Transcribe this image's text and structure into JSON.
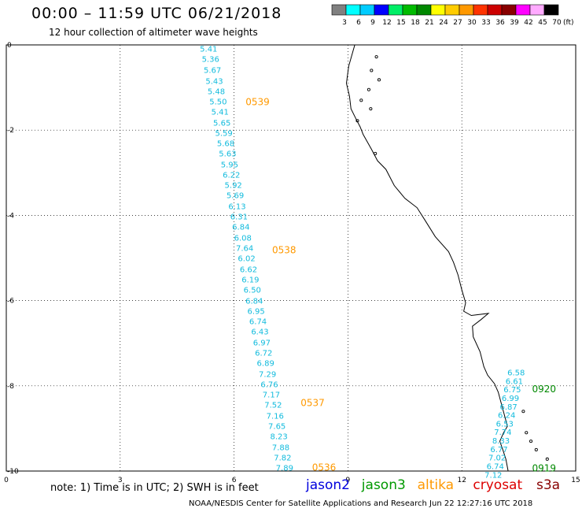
{
  "header": {
    "title": "00:00 – 11:59 UTC 06/21/2018",
    "subtitle": "12 hour collection of altimeter wave heights"
  },
  "color_scale": {
    "labels": [
      "3",
      "6",
      "9",
      "12",
      "15",
      "18",
      "21",
      "24",
      "27",
      "30",
      "33",
      "36",
      "39",
      "42",
      "45",
      "70"
    ],
    "unit": "(ft)",
    "colors": [
      "#808080",
      "#00ffff",
      "#00ccff",
      "#0000ff",
      "#00ee66",
      "#00bb00",
      "#008800",
      "#ffff00",
      "#ffcc00",
      "#ff9900",
      "#ff3300",
      "#cc0000",
      "#880000",
      "#ff00ff",
      "#ffaaff",
      "#000000"
    ]
  },
  "axes": {
    "x_ticks": [
      "0",
      "3",
      "6",
      "9",
      "12",
      "15"
    ],
    "y_ticks": [
      "0",
      "-2",
      "-4",
      "-6",
      "-8",
      "-10"
    ]
  },
  "tracks": [
    {
      "pass_labels": [
        {
          "text": "0539",
          "y": -1.32
        },
        {
          "text": "0538",
          "y": -4.8
        },
        {
          "text": "0537",
          "y": -8.38
        },
        {
          "text": "0536",
          "y": -9.9
        }
      ],
      "label_color": "#ff9900",
      "points": [
        {
          "x": 5.1,
          "y": -0.08,
          "v": "5.41"
        },
        {
          "x": 5.15,
          "y": -0.32,
          "v": "5.36"
        },
        {
          "x": 5.2,
          "y": -0.58,
          "v": "5.67"
        },
        {
          "x": 5.25,
          "y": -0.84,
          "v": "5.43"
        },
        {
          "x": 5.3,
          "y": -1.08,
          "v": "5.48"
        },
        {
          "x": 5.35,
          "y": -1.32,
          "v": "5.50"
        },
        {
          "x": 5.4,
          "y": -1.56,
          "v": "5.41"
        },
        {
          "x": 5.45,
          "y": -1.82,
          "v": "5.65"
        },
        {
          "x": 5.5,
          "y": -2.06,
          "v": "5.59"
        },
        {
          "x": 5.55,
          "y": -2.3,
          "v": "5.68"
        },
        {
          "x": 5.6,
          "y": -2.54,
          "v": "5.63"
        },
        {
          "x": 5.65,
          "y": -2.8,
          "v": "5.95"
        },
        {
          "x": 5.7,
          "y": -3.04,
          "v": "6.22"
        },
        {
          "x": 5.75,
          "y": -3.28,
          "v": "5.92"
        },
        {
          "x": 5.8,
          "y": -3.52,
          "v": "5.69"
        },
        {
          "x": 5.85,
          "y": -3.78,
          "v": "6.13"
        },
        {
          "x": 5.9,
          "y": -4.02,
          "v": "6.31"
        },
        {
          "x": 5.95,
          "y": -4.26,
          "v": "6.84"
        },
        {
          "x": 6.0,
          "y": -4.52,
          "v": "6.08"
        },
        {
          "x": 6.05,
          "y": -4.76,
          "v": "7.64"
        },
        {
          "x": 6.1,
          "y": -5.0,
          "v": "6.02"
        },
        {
          "x": 6.15,
          "y": -5.26,
          "v": "6.62"
        },
        {
          "x": 6.2,
          "y": -5.5,
          "v": "6.19"
        },
        {
          "x": 6.25,
          "y": -5.74,
          "v": "6.50"
        },
        {
          "x": 6.3,
          "y": -6.0,
          "v": "6.84"
        },
        {
          "x": 6.35,
          "y": -6.24,
          "v": "6.95"
        },
        {
          "x": 6.4,
          "y": -6.48,
          "v": "6.74"
        },
        {
          "x": 6.45,
          "y": -6.72,
          "v": "6.43"
        },
        {
          "x": 6.5,
          "y": -6.98,
          "v": "6.97"
        },
        {
          "x": 6.55,
          "y": -7.22,
          "v": "6.72"
        },
        {
          "x": 6.6,
          "y": -7.46,
          "v": "6.89"
        },
        {
          "x": 6.65,
          "y": -7.72,
          "v": "7.29"
        },
        {
          "x": 6.7,
          "y": -7.96,
          "v": "6.76"
        },
        {
          "x": 6.75,
          "y": -8.2,
          "v": "7.17"
        },
        {
          "x": 6.8,
          "y": -8.44,
          "v": "7.52"
        },
        {
          "x": 6.85,
          "y": -8.7,
          "v": "7.16"
        },
        {
          "x": 6.9,
          "y": -8.94,
          "v": "7.65"
        },
        {
          "x": 6.95,
          "y": -9.18,
          "v": "8.23"
        },
        {
          "x": 7.0,
          "y": -9.44,
          "v": "7.88"
        },
        {
          "x": 7.05,
          "y": -9.68,
          "v": "7.82"
        },
        {
          "x": 7.1,
          "y": -9.92,
          "v": "7.89"
        }
      ]
    },
    {
      "pass_labels": [
        {
          "text": "0920",
          "y": -8.06
        },
        {
          "text": "0919",
          "y": -9.92
        }
      ],
      "label_color": "#008800",
      "points": [
        {
          "x": 13.2,
          "y": -7.68,
          "v": "6.58"
        },
        {
          "x": 13.15,
          "y": -7.88,
          "v": "6.61"
        },
        {
          "x": 13.1,
          "y": -8.08,
          "v": "6.75"
        },
        {
          "x": 13.05,
          "y": -8.28,
          "v": "6.99"
        },
        {
          "x": 13.0,
          "y": -8.48,
          "v": "6.87"
        },
        {
          "x": 12.95,
          "y": -8.68,
          "v": "6.24"
        },
        {
          "x": 12.9,
          "y": -8.88,
          "v": "6.53"
        },
        {
          "x": 12.85,
          "y": -9.08,
          "v": "7.74"
        },
        {
          "x": 12.8,
          "y": -9.28,
          "v": "8.33"
        },
        {
          "x": 12.75,
          "y": -9.48,
          "v": "6.77"
        },
        {
          "x": 12.7,
          "y": -9.68,
          "v": "7.02"
        },
        {
          "x": 12.65,
          "y": -9.88,
          "v": "6.74"
        },
        {
          "x": 12.6,
          "y": -10.08,
          "v": "7.12"
        }
      ]
    }
  ],
  "note": "note: 1) Time is in UTC; 2) SWH is in feet",
  "satellites": [
    {
      "name": "jason2",
      "color": "#0000dd"
    },
    {
      "name": "jason3",
      "color": "#009900"
    },
    {
      "name": "altika",
      "color": "#ff9900"
    },
    {
      "name": "cryosat",
      "color": "#dd0000"
    },
    {
      "name": "s3a",
      "color": "#880000"
    }
  ],
  "footer": "NOAA/NESDIS Center for Satellite Applications and Research     Jun 22 12:27:16 UTC 2018"
}
